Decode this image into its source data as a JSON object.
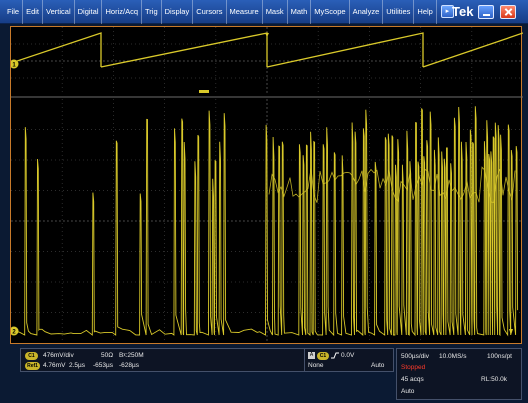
{
  "menu": {
    "items": [
      "File",
      "Edit",
      "Vertical",
      "Digital",
      "Horiz/Acq",
      "Trig",
      "Display",
      "Cursors",
      "Measure",
      "Mask",
      "Math",
      "MyScope",
      "Analyze",
      "Utilities",
      "Help"
    ],
    "help_arrow_icon": "dropdown-arrow-icon"
  },
  "brand": "Tek",
  "markers": {
    "ch_top": "1",
    "ch_bottom": "2"
  },
  "channel_panel": {
    "ch1_badge": "C1",
    "ch1_scale": "476mV/div",
    "ch1_impedance": "50Ω",
    "ch1_bandwidth": "Bᵡ:250M",
    "ref_badge": "Ref1",
    "ref_scale": "4.76mV",
    "ref_time": "2.5µs",
    "ref_pos1": "-653µs",
    "ref_pos2": "-628µs"
  },
  "trigger_panel": {
    "source_box": "A",
    "source_badge": "C1",
    "slope_icon": "rising-edge-icon",
    "level": "0.0V",
    "coupling": "None",
    "mode": "Auto"
  },
  "acq_panel": {
    "timebase": "500µs/div",
    "sample_rate": "10.0MS/s",
    "resolution": "100ns/pt",
    "state": "Stopped",
    "acqs": "45 acqs",
    "record_length": "RL:50.0k",
    "trig_mode": "Auto"
  },
  "colors": {
    "trace": "#d9c92a",
    "grid": "#3c3c3c",
    "state_red": "#ff3a2a",
    "menubar": "#2a5fb8"
  }
}
